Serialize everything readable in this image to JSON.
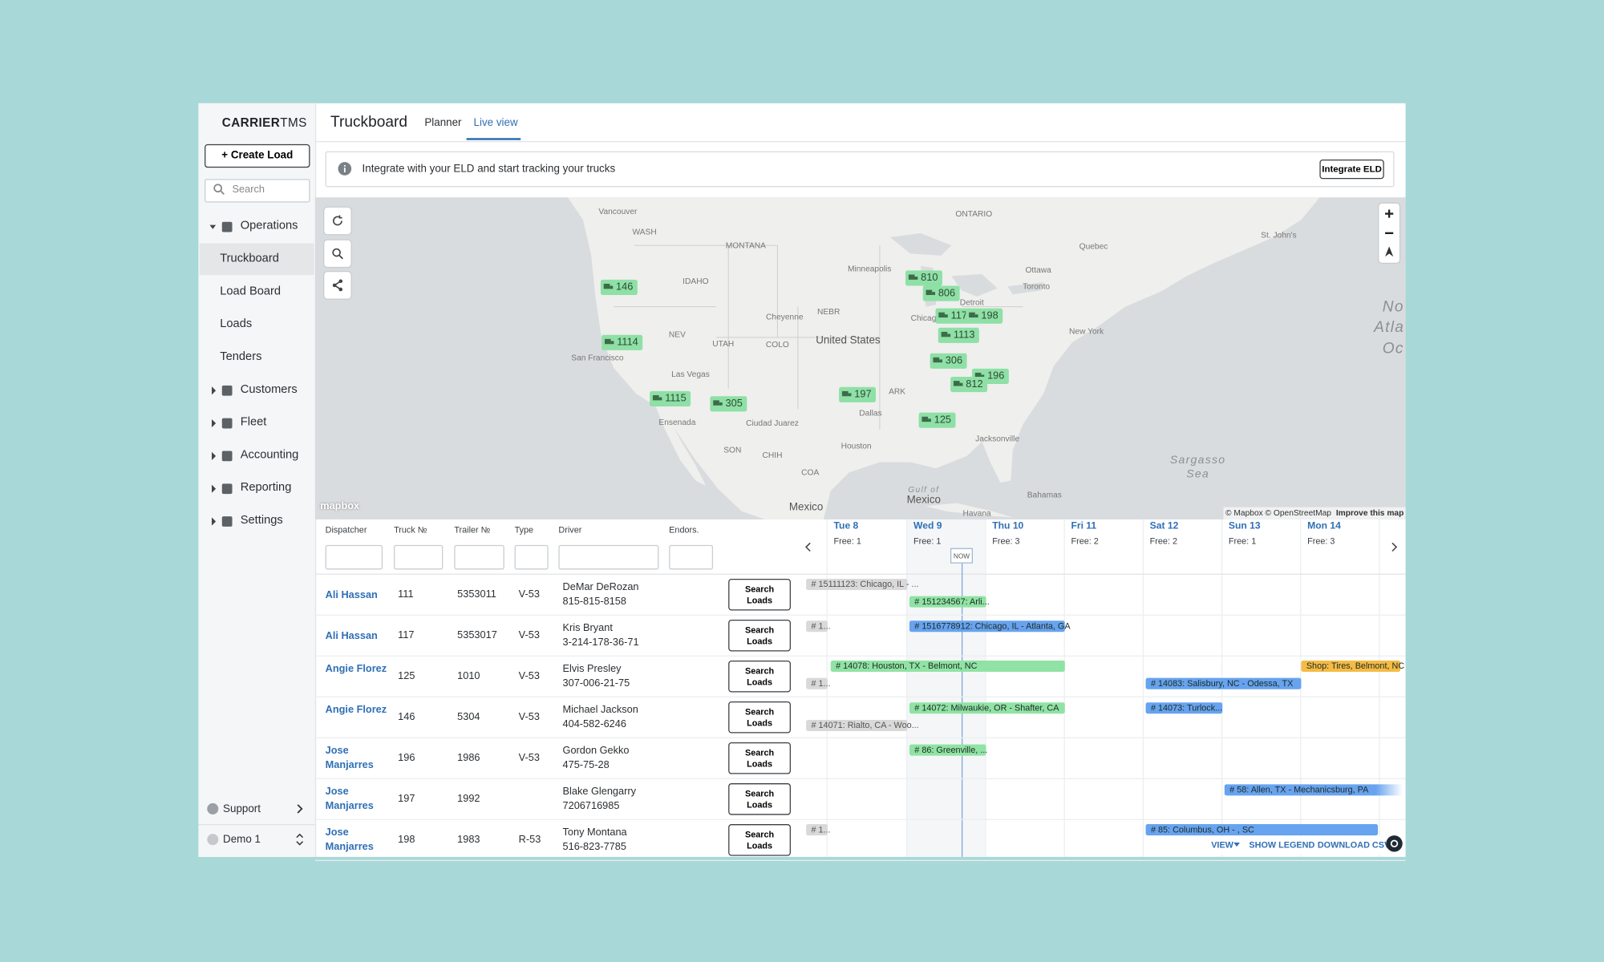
{
  "sidebar": {
    "brand_strong": "CARRIER",
    "brand_light": "TMS",
    "create_load": "+ Create Load",
    "search": "Search",
    "nav": [
      "Operations",
      "Customers",
      "Fleet",
      "Accounting",
      "Reporting",
      "Settings"
    ],
    "operations_items": [
      "Truckboard",
      "Load Board",
      "Loads",
      "Tenders"
    ],
    "support": "Support",
    "account": "Demo 1"
  },
  "header": {
    "title": "Truckboard",
    "tabs": [
      "Planner",
      "Live view"
    ]
  },
  "banner": {
    "text": "Integrate with your ELD and start tracking your trucks",
    "button": "Integrate ELD"
  },
  "map": {
    "labels": [
      "Vancouver",
      "WASH",
      "MONTANA",
      "ONTARIO",
      "Quebec",
      "IDAHO",
      "Minneapolis",
      "Ottawa",
      "Toronto",
      "Cheyenne",
      "NEBR",
      "Chicago",
      "Detroit",
      "NEV",
      "UTAH",
      "United States",
      "COLO",
      "New York",
      "San Francisco",
      "Las Vegas",
      "ARK",
      "Dallas",
      "Ensenada",
      "Ciudad Juarez",
      "SON",
      "Houston",
      "Jacksonville",
      "CHIH",
      "COA",
      "Gulf of",
      "Mexico",
      "Mexico",
      "Bahamas",
      "Havana",
      "Sargasso",
      "Sea",
      "No",
      "Atla",
      "Oc",
      "St. John's"
    ],
    "markers": [
      "146",
      "1114",
      "1115",
      "305",
      "197",
      "810",
      "806",
      "117",
      "198",
      "1113",
      "306",
      "196",
      "812",
      "125"
    ],
    "logo": "mapbox",
    "attribution": "© Mapbox © OpenStreetMap",
    "improve": "Improve this map"
  },
  "table": {
    "columns": [
      "Dispatcher",
      "Truck №",
      "Trailer №",
      "Type",
      "Driver",
      "Endors."
    ],
    "button": "Search Loads",
    "rows": [
      {
        "dispatcher": "Ali Hassan",
        "truck": "111",
        "trailer": "5353011",
        "type": "V-53",
        "driver": "DeMar DeRozan",
        "phone": "815-815-8158",
        "loads": [
          {
            "text": "# 15111123: Chicago, IL - ...",
            "color": "#d9d9d9"
          },
          {
            "text": "# 151234567: Arli...",
            "color": "#90e3a4"
          }
        ]
      },
      {
        "dispatcher": "Ali Hassan",
        "truck": "117",
        "trailer": "5353017",
        "type": "V-53",
        "driver": "Kris Bryant",
        "phone": "3-214-178-36-71",
        "loads": [
          {
            "text": "# 1...",
            "color": "#d9d9d9"
          },
          {
            "text": "# 1516778912: Chicago, IL - Atlanta, GA",
            "color": "#67a3ef"
          }
        ]
      },
      {
        "dispatcher": "Angie Florez",
        "truck": "125",
        "trailer": "1010",
        "type": "V-53",
        "driver": "Elvis Presley",
        "phone": "307-006-21-75",
        "loads": [
          {
            "text": "# 14078: Houston, TX - Belmont, NC",
            "color": "#90e3a4"
          },
          {
            "text": "# 1...",
            "color": "#d9d9d9"
          },
          {
            "text": "# 14083: Salisbury, NC - Odessa, TX",
            "color": "#67a3ef"
          },
          {
            "text": "Shop: Tires, Belmont, NC",
            "color": "#f5bb45"
          }
        ]
      },
      {
        "dispatcher": "Angie Florez",
        "truck": "146",
        "trailer": "5304",
        "type": "V-53",
        "driver": "Michael Jackson",
        "phone": "404-582-6246",
        "loads": [
          {
            "text": "# 14072: Milwaukie, OR - Shafter, CA",
            "color": "#90e3a4"
          },
          {
            "text": "# 14071: Rialto, CA - Woo...",
            "color": "#d9d9d9"
          },
          {
            "text": "# 14073: Turlock...",
            "color": "#67a3ef"
          }
        ]
      },
      {
        "dispatcher": "Jose Manjarres",
        "truck": "196",
        "trailer": "1986",
        "type": "V-53",
        "driver": "Gordon Gekko",
        "phone": "475-75-28",
        "loads": [
          {
            "text": "# 86: Greenville, ...",
            "color": "#90e3a4"
          }
        ]
      },
      {
        "dispatcher": "Jose Manjarres",
        "truck": "197",
        "trailer": "1992",
        "type": "",
        "driver": "Blake Glengarry",
        "phone": "7206716985",
        "loads": [
          {
            "text": "# 58: Allen, TX - Mechanicsburg, PA",
            "color": "#67a3ef"
          }
        ]
      },
      {
        "dispatcher": "Jose Manjarres",
        "truck": "198",
        "trailer": "1983",
        "type": "R-53",
        "driver": "Tony Montana",
        "phone": "516-823-7785",
        "loads": [
          {
            "text": "# 1...",
            "color": "#d9d9d9"
          },
          {
            "text": "# 85: Columbus, OH - , SC",
            "color": "#67a3ef"
          }
        ]
      }
    ]
  },
  "timeline": {
    "days": [
      {
        "day": "Tue 8",
        "free": "Free: 1"
      },
      {
        "day": "Wed 9",
        "free": "Free: 1"
      },
      {
        "day": "Thu 10",
        "free": "Free: 3"
      },
      {
        "day": "Fri 11",
        "free": "Free: 2"
      },
      {
        "day": "Sat 12",
        "free": "Free: 2"
      },
      {
        "day": "Sun 13",
        "free": "Free: 1"
      },
      {
        "day": "Mon 14",
        "free": "Free: 3"
      }
    ],
    "now": "NOW",
    "view": "VIEW",
    "legend": "SHOW LEGEND",
    "download": "DOWNLOAD CSV"
  }
}
